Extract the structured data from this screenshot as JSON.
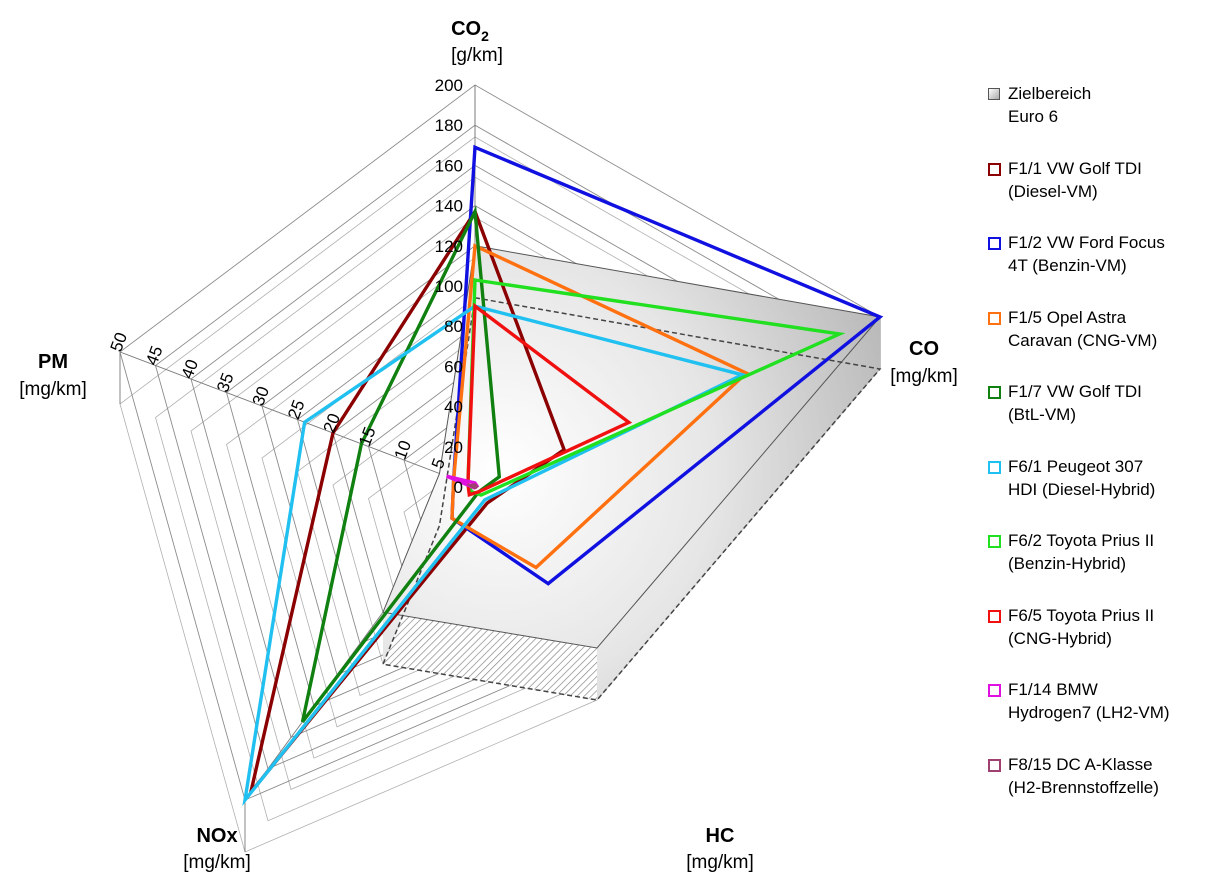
{
  "chart_data": {
    "type": "radar",
    "axes": [
      {
        "key": "co2",
        "name": "CO2",
        "name_main": "CO",
        "name_sub": "2",
        "unit": "[g/km]",
        "max": 200,
        "ticks": [
          "0",
          "20",
          "40",
          "60",
          "80",
          "100",
          "120",
          "140",
          "160",
          "180",
          "200"
        ]
      },
      {
        "key": "co",
        "name": "CO",
        "unit": "[mg/km]",
        "max": 1000
      },
      {
        "key": "hc",
        "name": "HC",
        "unit": "[mg/km]",
        "max": 100
      },
      {
        "key": "nox",
        "name": "NOx",
        "unit": "[mg/km]",
        "max": 200
      },
      {
        "key": "pm",
        "name": "PM",
        "unit": "[mg/km]",
        "max": 50,
        "ticks": [
          "5",
          "10",
          "15",
          "20",
          "25",
          "30",
          "35",
          "40",
          "45",
          "50"
        ]
      }
    ],
    "target_area": {
      "name": "Zielbereich Euro 6",
      "legend_lines": [
        "Zielbereich",
        "Euro 6"
      ],
      "values": [
        120,
        1000,
        100,
        80,
        5
      ]
    },
    "series": [
      {
        "name": "F1/1 VW Golf TDI (Diesel-VM)",
        "legend_lines": [
          "F1/1 VW Golf TDI",
          "(Diesel-VM)"
        ],
        "color": "#8b0000",
        "values": [
          137,
          220,
          10,
          195,
          20
        ]
      },
      {
        "name": "F1/2 VW Ford Focus 4T (Benzin-VM)",
        "legend_lines": [
          "F1/2 VW Ford Focus",
          "4T (Benzin-VM)"
        ],
        "color": "#1010e0",
        "values": [
          169,
          1000,
          60,
          20,
          3
        ]
      },
      {
        "name": "F1/5 Opel Astra Caravan (CNG-VM)",
        "legend_lines": [
          "F1/5 Opel Astra",
          "Caravan (CNG-VM)"
        ],
        "color": "#ff7010",
        "values": [
          120,
          670,
          50,
          20,
          3
        ]
      },
      {
        "name": "F1/7 VW Golf TDI (BtL-VM)",
        "legend_lines": [
          "F1/7 VW Golf TDI",
          "(BtL-VM)"
        ],
        "color": "#108010",
        "values": [
          137,
          60,
          3,
          150,
          16
        ]
      },
      {
        "name": "F6/1 Peugeot 307 HDI (Diesel-Hybrid)",
        "legend_lines": [
          "F6/1 Peugeot 307",
          "HDI (Diesel-Hybrid)"
        ],
        "color": "#20c0f0",
        "values": [
          90,
          660,
          8,
          200,
          24
        ]
      },
      {
        "name": "F6/2 Toyota Prius II (Benzin-Hybrid)",
        "legend_lines": [
          "F6/2 Toyota Prius II",
          "(Benzin-Hybrid)"
        ],
        "color": "#20e020",
        "values": [
          103,
          900,
          5,
          3,
          1
        ]
      },
      {
        "name": "F6/5 Toyota Prius II (CNG-Hybrid)",
        "legend_lines": [
          "F6/5 Toyota Prius II",
          "(CNG-Hybrid)"
        ],
        "color": "#f01010",
        "values": [
          90,
          380,
          3,
          5,
          1
        ]
      },
      {
        "name": "F1/14 BMW Hydrogen7 (LH2-VM)",
        "legend_lines": [
          "F1/14 BMW",
          "Hydrogen7 (LH2-VM)"
        ],
        "color": "#e010e0",
        "values": [
          2,
          5,
          0.3,
          0.5,
          4
        ]
      },
      {
        "name": "F8/15 DC A-Klasse (H2-Brennstoffzelle)",
        "legend_lines": [
          "F8/15 DC A-Klasse",
          "(H2-Brennstoffzelle)"
        ],
        "color": "#a04070",
        "values": [
          1,
          3,
          0.2,
          0.2,
          0.5
        ]
      }
    ]
  }
}
